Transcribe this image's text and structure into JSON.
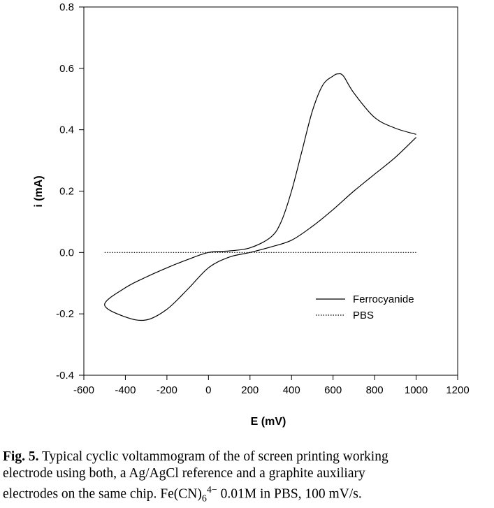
{
  "chart_data": {
    "type": "line",
    "xlabel": "E (mV)",
    "ylabel": "i (mA)",
    "xlim": [
      -600,
      1200
    ],
    "ylim": [
      -0.4,
      0.8
    ],
    "xticks": [
      -600,
      -400,
      -200,
      0,
      200,
      400,
      600,
      800,
      1000,
      1200
    ],
    "yticks": [
      -0.4,
      -0.2,
      0.0,
      0.2,
      0.4,
      0.6,
      0.8
    ],
    "xtick_labels": [
      "-600",
      "-400",
      "-200",
      "0",
      "200",
      "400",
      "600",
      "800",
      "1000",
      "1200"
    ],
    "ytick_labels": [
      "-0.4",
      "-0.2",
      "0.0",
      "0.2",
      "0.4",
      "0.6",
      "0.8"
    ],
    "grid": false,
    "legend_position": "bottom-right",
    "series": [
      {
        "name": "Ferrocyanide",
        "style": "solid",
        "color": "#000000",
        "x": [
          1000,
          900,
          800,
          700,
          600,
          500,
          400,
          300,
          200,
          100,
          0,
          -100,
          -200,
          -300,
          -400,
          -500,
          -400,
          -300,
          -200,
          -100,
          0,
          100,
          200,
          300,
          350,
          400,
          450,
          500,
          550,
          600,
          625,
          650,
          700,
          800,
          900,
          1000
        ],
        "y": [
          0.375,
          0.31,
          0.255,
          0.2,
          0.14,
          0.085,
          0.04,
          0.018,
          0.0,
          -0.015,
          -0.05,
          -0.12,
          -0.185,
          -0.22,
          -0.21,
          -0.17,
          -0.115,
          -0.08,
          -0.05,
          -0.023,
          0.0,
          0.005,
          0.015,
          0.05,
          0.1,
          0.2,
          0.33,
          0.46,
          0.545,
          0.575,
          0.582,
          0.575,
          0.52,
          0.44,
          0.405,
          0.385
        ]
      },
      {
        "name": "PBS",
        "style": "dotted",
        "color": "#000000",
        "x": [
          -500,
          1000
        ],
        "y": [
          0.0,
          0.0
        ]
      }
    ]
  },
  "caption": {
    "label": "Fig. 5.",
    "line1": " Typical cyclic voltammogram of the of screen printing working",
    "line2": "electrode using both, a Ag/AgCl reference and a graphite auxiliary",
    "line3_a": "electrodes on the same chip. Fe(CN)",
    "line3_sub": "6",
    "line3_sup": "4−",
    "line3_b": " 0.01M in PBS, 100 mV/s."
  }
}
